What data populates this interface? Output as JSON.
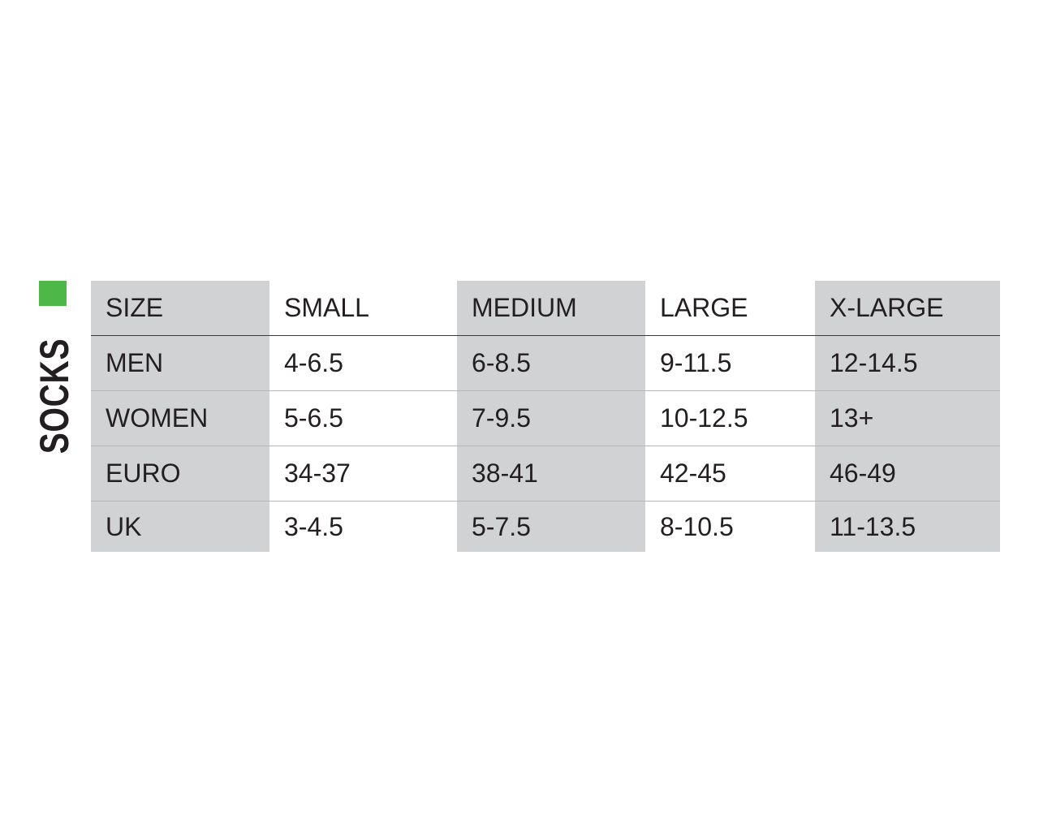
{
  "title": "SOCKS",
  "accent_color": "#4db848",
  "table": {
    "headers": [
      "SIZE",
      "SMALL",
      "MEDIUM",
      "LARGE",
      "X-LARGE"
    ],
    "rows": [
      [
        "MEN",
        "4-6.5",
        "6-8.5",
        "9-11.5",
        "12-14.5"
      ],
      [
        "WOMEN",
        "5-6.5",
        "7-9.5",
        "10-12.5",
        "13+"
      ],
      [
        "EURO",
        "34-37",
        "38-41",
        "42-45",
        "46-49"
      ],
      [
        "UK",
        "3-4.5",
        "5-7.5",
        "8-10.5",
        "11-13.5"
      ]
    ]
  }
}
